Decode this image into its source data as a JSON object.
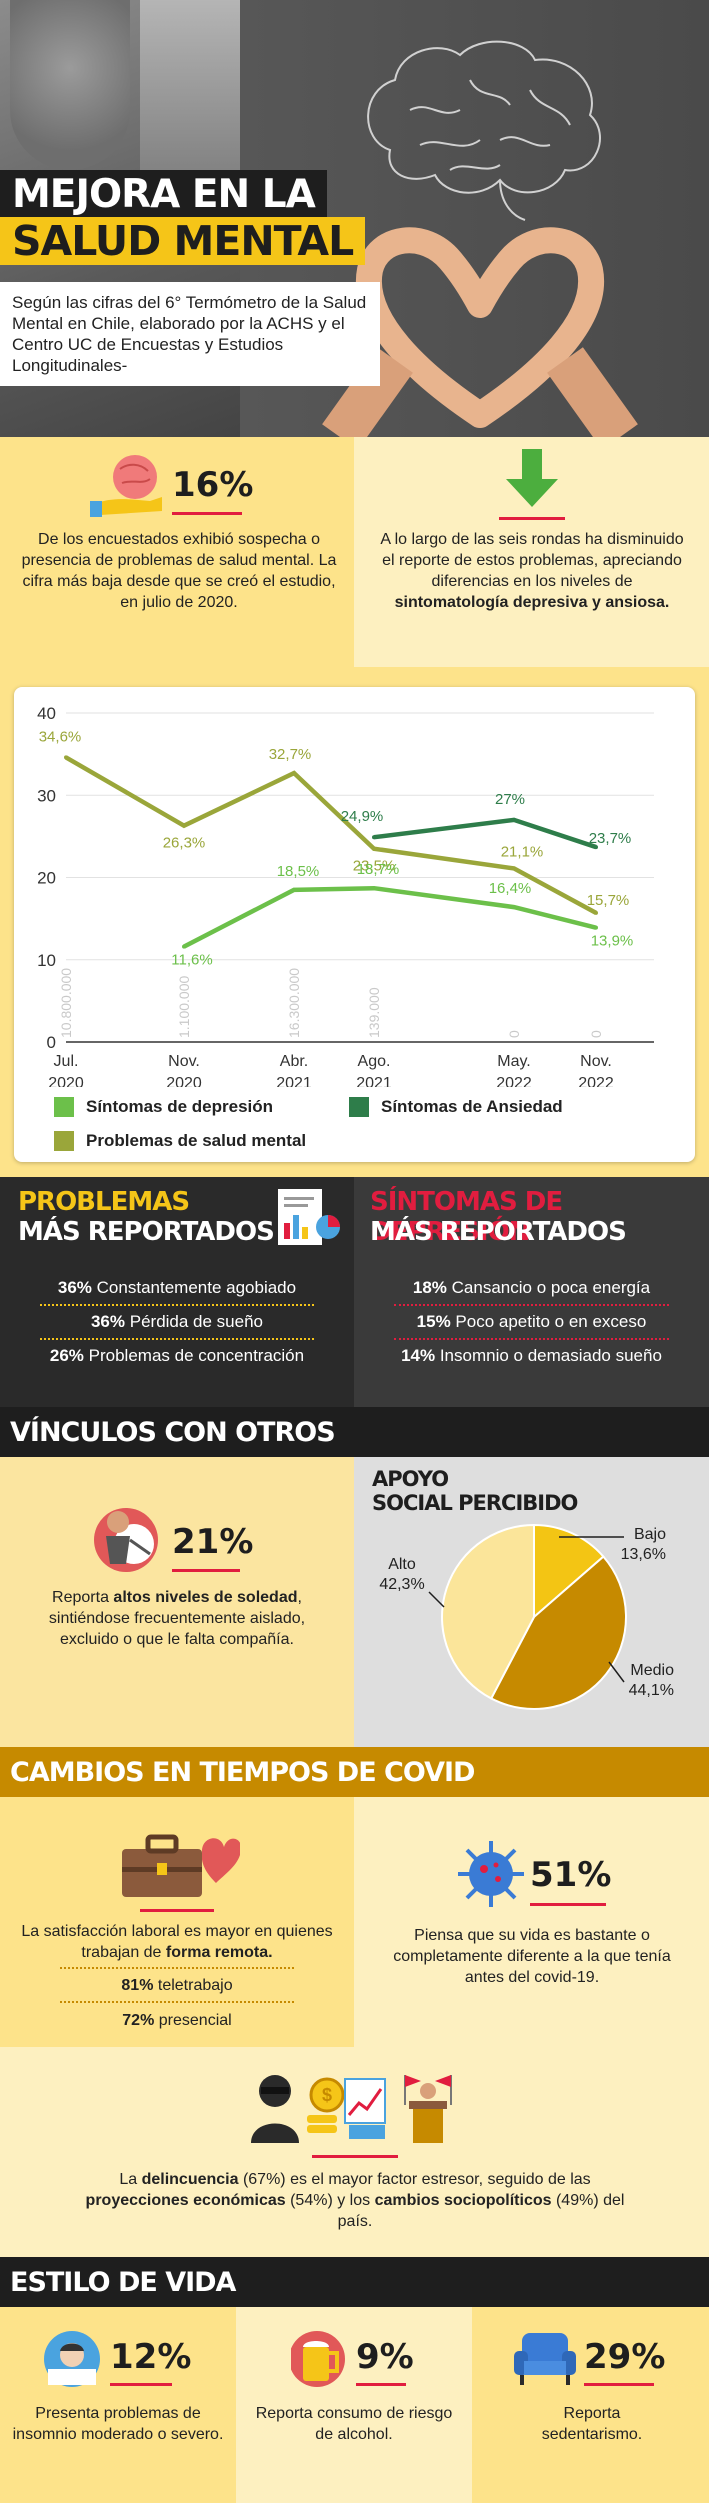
{
  "hero": {
    "title_line1": "MEJORA EN LA",
    "title_line2": "SALUD MENTAL",
    "intro": "Según las cifras del 6° Termómetro de la Salud Mental en Chile, elaborado por la ACHS y el Centro UC de Encuestas y Estudios Longitudinales-"
  },
  "stat16": {
    "pct": "16%",
    "text": "De los encuestados exhibió sospecha o presencia de problemas de salud mental. La cifra más baja desde que se creó el estudio, en julio de 2020."
  },
  "decline": {
    "text_plain": "A lo largo de las seis rondas ha disminuido el reporte de estos problemas, apreciando diferencias en los niveles de",
    "text_bold": "sintomatología depresiva y ansiosa."
  },
  "chart_data": {
    "type": "line",
    "x": [
      "Jul.\n2020",
      "Nov.\n2020",
      "Abr.\n2021",
      "Ago.\n2021",
      "May.\n2022",
      "Nov.\n2022"
    ],
    "x_line1": [
      "Jul.",
      "Nov.",
      "Abr.",
      "Ago.",
      "May.",
      "Nov."
    ],
    "x_line2": [
      "2020",
      "2020",
      "2021",
      "2021",
      "2022",
      "2022"
    ],
    "y_ticks": [
      "0",
      "10",
      "20",
      "30",
      "40"
    ],
    "ylim": [
      0,
      40
    ],
    "sample_sizes": [
      "10.800.000",
      "1.100.000",
      "16.300.000",
      "139.000",
      "0",
      "0"
    ],
    "series": [
      {
        "name": "Problemas de salud mental",
        "color": "#9aa63a",
        "values": [
          34.6,
          26.3,
          32.7,
          23.5,
          21.1,
          15.7
        ],
        "labels": [
          "34,6%",
          "26,3%",
          "32,7%",
          "23,5%",
          "21,1%",
          "15,7%"
        ]
      },
      {
        "name": "Síntomas de depresión",
        "color": "#6cc04a",
        "values": [
          null,
          11.6,
          18.5,
          18.7,
          16.4,
          13.9
        ],
        "labels": [
          "",
          "11,6%",
          "18,5%",
          "18,7%",
          "16,4%",
          "13,9%"
        ]
      },
      {
        "name": "Síntomas de Ansiedad",
        "color": "#2e7d4a",
        "values": [
          null,
          null,
          null,
          24.9,
          27.0,
          23.7
        ],
        "labels": [
          "",
          "",
          "",
          "24,9%",
          "27%",
          "23,7%"
        ]
      }
    ]
  },
  "problemas": {
    "head1": "PROBLEMAS",
    "head2": "MÁS REPORTADOS",
    "items": [
      {
        "pct": "36%",
        "label": "Constantemente agobiado"
      },
      {
        "pct": "36%",
        "label": "Pérdida de sueño"
      },
      {
        "pct": "26%",
        "label": "Problemas de concentración"
      }
    ]
  },
  "sintomas": {
    "head1": "SÍNTOMAS DE DEPRESIÓN",
    "head2": "MÁS REPORTADOS",
    "items": [
      {
        "pct": "18%",
        "label": "Cansancio o poca energía"
      },
      {
        "pct": "15%",
        "label": "Poco apetito o en exceso"
      },
      {
        "pct": "14%",
        "label": "Insomnio o demasiado sueño"
      }
    ]
  },
  "vinculos": {
    "header": "VÍNCULOS CON OTROS",
    "pct": "21%",
    "text_plain1": "Reporta",
    "text_bold": "altos niveles de soledad",
    "text_plain2": ", sintiéndose frecuentemente aislado, excluido o que le falta compañía.",
    "apoyo_title1": "APOYO",
    "apoyo_title2": "SOCIAL PERCIBIDO",
    "pie": [
      {
        "label": "Bajo",
        "value": "13,6%",
        "v": 13.6,
        "color": "#f3c514"
      },
      {
        "label": "Medio",
        "value": "44,1%",
        "v": 44.1,
        "color": "#c68a00"
      },
      {
        "label": "Alto",
        "value": "42,3%",
        "v": 42.3,
        "color": "#fbe59a"
      }
    ]
  },
  "covid": {
    "header": "CAMBIOS EN TIEMPOS DE COVID",
    "laboral_plain": "La satisfacción laboral es mayor en quienes trabajan de",
    "laboral_bold": "forma remota.",
    "tele_pct": "81%",
    "tele_label": "teletrabajo",
    "pres_pct": "72%",
    "pres_label": "presencial",
    "vida_pct": "51%",
    "vida_text": "Piensa que su vida es bastante o completamente diferente a la que tenía antes del covid-19.",
    "estres_1": "La",
    "estres_b1": "delincuencia",
    "estres_2": "(67%) es el mayor factor estresor, seguido de las",
    "estres_b2": "proyecciones económicas",
    "estres_3": "(54%) y los",
    "estres_b3": "cambios sociopolíticos",
    "estres_4": "(49%) del país."
  },
  "estilo": {
    "header": "ESTILO DE VIDA",
    "items": [
      {
        "pct": "12%",
        "text": "Presenta problemas de insomnio moderado o severo."
      },
      {
        "pct": "9%",
        "text": "Reporta consumo de riesgo de alcohol."
      },
      {
        "pct": "29%",
        "text": "Reporta sedentarismo."
      }
    ]
  },
  "colors": {
    "yellow": "#f5c518",
    "gold": "#c68a00",
    "red": "#e11d3f",
    "dark": "#1e1e1e"
  }
}
